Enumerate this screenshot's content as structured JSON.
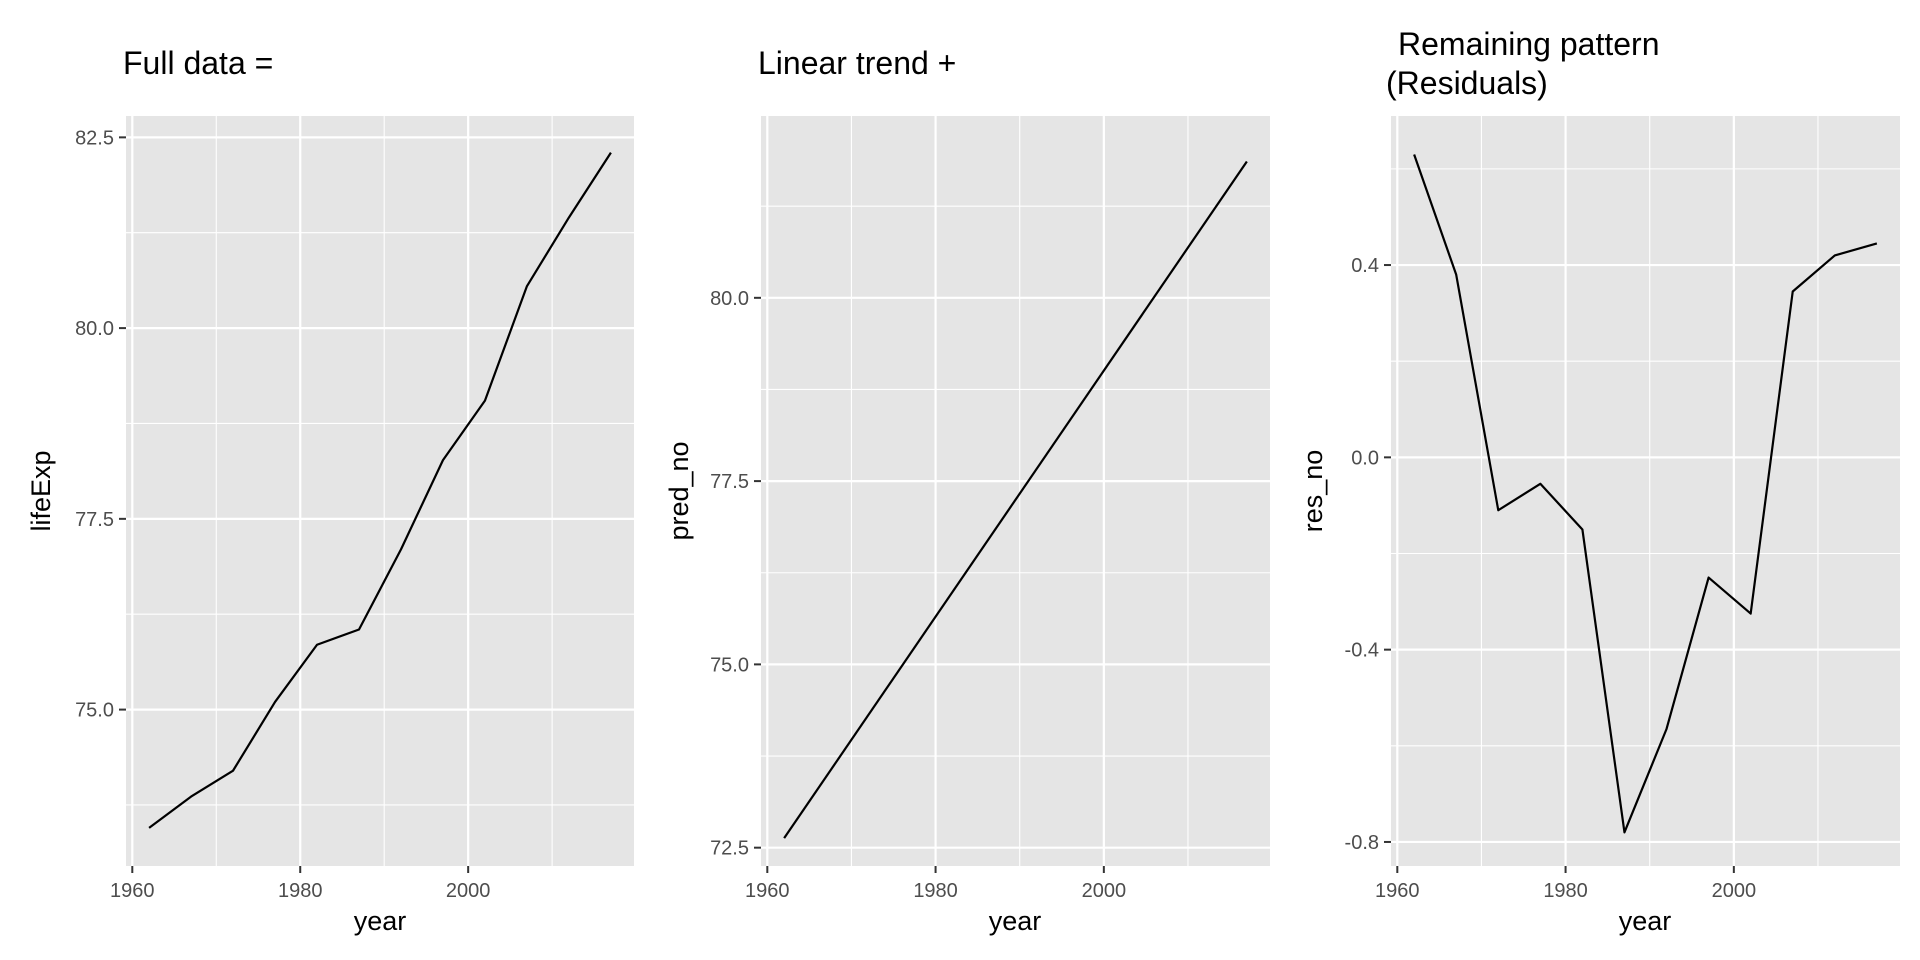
{
  "chart_data": [
    {
      "type": "line",
      "title": "Full data =",
      "xlabel": "year",
      "ylabel": "lifeExp",
      "xlim": [
        1959.25,
        2019.75
      ],
      "ylim": [
        72.95,
        82.78
      ],
      "x_ticks": [
        1960,
        1980,
        2000
      ],
      "x_ticks_labels": [
        "1960",
        "1980",
        "2000"
      ],
      "y_ticks": [
        75.0,
        77.5,
        80.0,
        82.5
      ],
      "y_ticks_labels": [
        "75.0",
        "77.5",
        "80.0",
        "82.5"
      ],
      "grid": true,
      "x": [
        1962,
        1967,
        1972,
        1977,
        1982,
        1987,
        1992,
        1997,
        2002,
        2007,
        2012,
        2017
      ],
      "y": [
        73.45,
        73.86,
        74.2,
        75.1,
        75.85,
        76.05,
        77.1,
        78.27,
        79.05,
        80.55,
        81.45,
        82.3
      ]
    },
    {
      "type": "line",
      "title": "Linear trend +",
      "xlabel": "year",
      "ylabel": "pred_no",
      "xlim": [
        1959.25,
        2019.75
      ],
      "ylim": [
        72.25,
        82.48
      ],
      "x_ticks": [
        1960,
        1980,
        2000
      ],
      "x_ticks_labels": [
        "1960",
        "1980",
        "2000"
      ],
      "y_ticks": [
        72.5,
        75.0,
        77.5,
        80.0
      ],
      "y_ticks_labels": [
        "72.5",
        "75.0",
        "77.5",
        "80.0"
      ],
      "grid": true,
      "x": [
        1962,
        2017
      ],
      "y": [
        72.63,
        81.86
      ]
    },
    {
      "type": "line",
      "title": "Remaining pattern",
      "title_line2": "(Residuals)",
      "xlabel": "year",
      "ylabel": "res_no",
      "xlim": [
        1959.25,
        2019.75
      ],
      "ylim": [
        -0.85,
        0.71
      ],
      "x_ticks": [
        1960,
        1980,
        2000
      ],
      "x_ticks_labels": [
        "1960",
        "1980",
        "2000"
      ],
      "y_ticks": [
        -0.8,
        -0.4,
        0.0,
        0.4
      ],
      "y_ticks_labels": [
        "-0.8",
        "-0.4",
        "0.0",
        "0.4"
      ],
      "grid": true,
      "x": [
        1962,
        1967,
        1972,
        1977,
        1982,
        1987,
        1992,
        1997,
        2002,
        2007,
        2012,
        2017
      ],
      "y": [
        0.63,
        0.38,
        -0.11,
        -0.055,
        -0.15,
        -0.78,
        -0.565,
        -0.25,
        -0.325,
        0.345,
        0.42,
        0.445
      ]
    }
  ]
}
